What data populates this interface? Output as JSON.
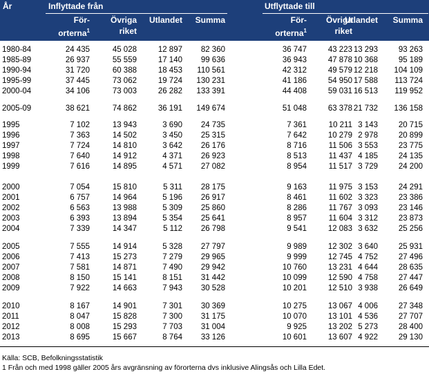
{
  "header": {
    "year": "År",
    "in_group": "Inflyttade från",
    "out_group": "Utflyttade till",
    "col_suburbs_a": "För-",
    "col_suburbs_b": "orterna",
    "footnote_mark": "1",
    "col_other_a": "Övriga",
    "col_other_b": "riket",
    "col_abroad": "Utlandet",
    "col_sum": "Summa"
  },
  "groups": [
    {
      "rows": [
        [
          "1980-84",
          "24 435",
          "45 028",
          "12 897",
          "82 360",
          "36 747",
          "43 223",
          "13 293",
          "93 263"
        ],
        [
          "1985-89",
          "26 937",
          "55 559",
          "17 140",
          "99 636",
          "36 943",
          "47 878",
          "10 368",
          "95 189"
        ],
        [
          "1990-94",
          "31 720",
          "60 388",
          "18 453",
          "110 561",
          "42 312",
          "49 579",
          "12 218",
          "104 109"
        ],
        [
          "1995-99",
          "37 445",
          "73 062",
          "19 724",
          "130 231",
          "41 186",
          "54 950",
          "17 588",
          "113 724"
        ],
        [
          "2000-04",
          "34 106",
          "73 003",
          "26 282",
          "133 391",
          "44 408",
          "59 031",
          "16 513",
          "119 952"
        ]
      ]
    },
    {
      "rows": [
        [
          "2005-09",
          "38 621",
          "74 862",
          "36 191",
          "149 674",
          "51 048",
          "63 378",
          "21 732",
          "136 158"
        ]
      ]
    },
    {
      "rows": [
        [
          "1995",
          "7 102",
          "13 943",
          "3 690",
          "24 735",
          "7 361",
          "10 211",
          "3 143",
          "20 715"
        ],
        [
          "1996",
          "7 363",
          "14 502",
          "3 450",
          "25 315",
          "7 642",
          "10 279",
          "2 978",
          "20 899"
        ],
        [
          "1997",
          "7 724",
          "14 810",
          "3 642",
          "26 176",
          "8 716",
          "11 506",
          "3 553",
          "23 775"
        ],
        [
          "1998",
          "7 640",
          "14 912",
          "4 371",
          "26 923",
          "8 513",
          "11 437",
          "4 185",
          "24 135"
        ],
        [
          "1999",
          "7 616",
          "14 895",
          "4 571",
          "27 082",
          "8 954",
          "11 517",
          "3 729",
          "24 200"
        ]
      ]
    },
    {
      "rows": [
        [
          "2000",
          "7 054",
          "15 810",
          "5 311",
          "28 175",
          "9 163",
          "11 975",
          "3 153",
          "24 291"
        ],
        [
          "2001",
          "6 757",
          "14 964",
          "5 196",
          "26 917",
          "8 461",
          "11 602",
          "3 323",
          "23 386"
        ],
        [
          "2002",
          "6 563",
          "13 988",
          "5 309",
          "25 860",
          "8 286",
          "11 767",
          "3 093",
          "23 146"
        ],
        [
          "2003",
          "6 393",
          "13 894",
          "5 354",
          "25 641",
          "8 957",
          "11 604",
          "3 312",
          "23 873"
        ],
        [
          "2004",
          "7 339",
          "14 347",
          "5 112",
          "26 798",
          "9 541",
          "12 083",
          "3 632",
          "25 256"
        ]
      ]
    },
    {
      "rows": [
        [
          "2005",
          "7 555",
          "14 914",
          "5 328",
          "27 797",
          "9 989",
          "12 302",
          "3 640",
          "25 931"
        ],
        [
          "2006",
          "7 413",
          "15 273",
          "7 279",
          "29 965",
          "9 999",
          "12 745",
          "4 752",
          "27 496"
        ],
        [
          "2007",
          "7 581",
          "14 871",
          "7 490",
          "29 942",
          "10 760",
          "13 231",
          "4 644",
          "28 635"
        ],
        [
          "2008",
          "8 150",
          "15 141",
          "8 151",
          "31 442",
          "10 099",
          "12 590",
          "4 758",
          "27 447"
        ],
        [
          "2009",
          "7 922",
          "14 663",
          "7 943",
          "30 528",
          "10 201",
          "12 510",
          "3 938",
          "26 649"
        ]
      ]
    },
    {
      "rows": [
        [
          "2010",
          "8 167",
          "14 901",
          "7 301",
          "30 369",
          "10 275",
          "13 067",
          "4 006",
          "27 348"
        ],
        [
          "2011",
          "8 047",
          "15 828",
          "7 300",
          "31 175",
          "10 070",
          "13 101",
          "4 536",
          "27 707"
        ],
        [
          "2012",
          "8 008",
          "15 293",
          "7 703",
          "31 004",
          "9 925",
          "13 202",
          "5 273",
          "28 400"
        ],
        [
          "2013",
          "8 695",
          "15 667",
          "8 764",
          "33 126",
          "10 601",
          "13 607",
          "4 922",
          "29 130"
        ]
      ]
    }
  ],
  "source": "Källa: SCB, Befolkningsstatistik",
  "footnote": "1  Från och med 1998 gäller 2005 års avgränsning av förorterna dvs inklusive Alingsås och Lilla Edet.",
  "colors": {
    "header_bg": "#1d3f7a",
    "header_text": "#ffffff"
  }
}
